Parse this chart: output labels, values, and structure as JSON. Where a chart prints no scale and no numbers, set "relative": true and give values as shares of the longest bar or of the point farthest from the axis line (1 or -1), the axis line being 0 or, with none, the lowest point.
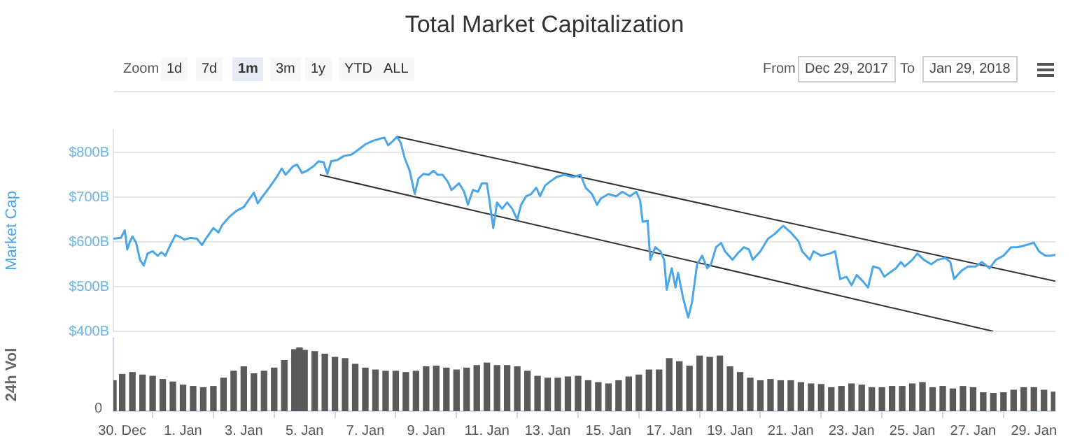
{
  "chart_data": [
    {
      "type": "line",
      "title": "Total Market Capitalization",
      "ylabel": "Market Cap",
      "annotations": [
        "Zoom",
        "1d",
        "7d",
        "1m",
        "3m",
        "1y",
        "YTD",
        "ALL",
        "From",
        "Dec 29, 2017",
        "To",
        "Jan 29, 2018"
      ],
      "xlim": [
        "2017-12-29T17:00",
        "2018-01-29T17:00"
      ],
      "ylim": [
        400,
        850
      ],
      "yticks": [
        {
          "value": 400,
          "label": "$400B"
        },
        {
          "value": 500,
          "label": "$500B"
        },
        {
          "value": 600,
          "label": "$600B"
        },
        {
          "value": 700,
          "label": "$700B"
        },
        {
          "value": 800,
          "label": "$800B"
        }
      ],
      "tick_labels": "y",
      "grid": "y",
      "legend": false,
      "marker": "none",
      "line_style": "solid",
      "series": [
        {
          "color": "#4aa6e8",
          "x": [
            "2017-12-29T17:00",
            "2017-12-29T23:00",
            "2017-12-30T02:00",
            "2017-12-30T04:00",
            "2017-12-30T06:00",
            "2017-12-30T08:00",
            "2017-12-30T11:00",
            "2017-12-30T14:00",
            "2017-12-30T17:00",
            "2017-12-30T20:00",
            "2017-12-31T00:00",
            "2017-12-31T04:00",
            "2017-12-31T07:00",
            "2017-12-31T10:00",
            "2017-12-31T14:00",
            "2017-12-31T18:00",
            "2017-12-31T21:00",
            "2018-01-01T01:00",
            "2018-01-01T06:00",
            "2018-01-01T11:00",
            "2018-01-01T15:00",
            "2018-01-01T18:00",
            "2018-01-02T00:00",
            "2018-01-02T04:00",
            "2018-01-02T07:00",
            "2018-01-02T13:00",
            "2018-01-02T18:00",
            "2018-01-03T00:00",
            "2018-01-03T06:00",
            "2018-01-03T08:00",
            "2018-01-03T11:00",
            "2018-01-03T15:00",
            "2018-01-03T20:00",
            "2018-01-04T02:00",
            "2018-01-04T06:00",
            "2018-01-04T09:00",
            "2018-01-04T15:00",
            "2018-01-04T18:00",
            "2018-01-04T22:00",
            "2018-01-05T02:00",
            "2018-01-05T07:00",
            "2018-01-05T11:00",
            "2018-01-05T15:00",
            "2018-01-05T18:00",
            "2018-01-05T21:00",
            "2018-01-06T02:00",
            "2018-01-06T07:00",
            "2018-01-06T13:00",
            "2018-01-06T18:00",
            "2018-01-07T00:00",
            "2018-01-07T06:00",
            "2018-01-07T11:00",
            "2018-01-07T15:00",
            "2018-01-07T18:00",
            "2018-01-07T22:00",
            "2018-01-08T01:00",
            "2018-01-08T04:00",
            "2018-01-08T07:00",
            "2018-01-08T11:00",
            "2018-01-08T15:00",
            "2018-01-08T18:00",
            "2018-01-08T22:00",
            "2018-01-09T02:00",
            "2018-01-09T06:00",
            "2018-01-09T09:00",
            "2018-01-09T13:00",
            "2018-01-09T17:00",
            "2018-01-09T20:00",
            "2018-01-10T02:00",
            "2018-01-10T06:00",
            "2018-01-10T09:00",
            "2018-01-10T13:00",
            "2018-01-10T17:00",
            "2018-01-10T20:00",
            "2018-01-11T00:00",
            "2018-01-11T02:00",
            "2018-01-11T05:00",
            "2018-01-11T08:00",
            "2018-01-11T12:00",
            "2018-01-11T16:00",
            "2018-01-11T20:00",
            "2018-01-12T00:00",
            "2018-01-12T03:00",
            "2018-01-12T07:00",
            "2018-01-12T11:00",
            "2018-01-12T15:00",
            "2018-01-12T18:00",
            "2018-01-12T22:00",
            "2018-01-13T02:00",
            "2018-01-13T07:00",
            "2018-01-13T13:00",
            "2018-01-13T20:00",
            "2018-01-14T02:00",
            "2018-01-14T06:00",
            "2018-01-14T11:00",
            "2018-01-14T15:00",
            "2018-01-14T18:00",
            "2018-01-15T00:00",
            "2018-01-15T06:00",
            "2018-01-15T11:00",
            "2018-01-15T17:00",
            "2018-01-15T22:00",
            "2018-01-16T01:00",
            "2018-01-16T03:00",
            "2018-01-16T07:00",
            "2018-01-16T09:00",
            "2018-01-16T13:00",
            "2018-01-16T17:00",
            "2018-01-16T20:00",
            "2018-01-16T22:00",
            "2018-01-17T02:00",
            "2018-01-17T05:00",
            "2018-01-17T07:00",
            "2018-01-17T11:00",
            "2018-01-17T15:00",
            "2018-01-17T18:00",
            "2018-01-17T22:00",
            "2018-01-18T02:00",
            "2018-01-18T06:00",
            "2018-01-18T09:00",
            "2018-01-18T13:00",
            "2018-01-18T17:00",
            "2018-01-18T20:00",
            "2018-01-19T02:00",
            "2018-01-19T06:00",
            "2018-01-19T11:00",
            "2018-01-19T15:00",
            "2018-01-19T18:00",
            "2018-01-20T00:00",
            "2018-01-20T06:00",
            "2018-01-20T11:00",
            "2018-01-20T18:00",
            "2018-01-21T00:00",
            "2018-01-21T06:00",
            "2018-01-21T09:00",
            "2018-01-21T15:00",
            "2018-01-21T18:00",
            "2018-01-22T00:00",
            "2018-01-22T07:00",
            "2018-01-22T11:00",
            "2018-01-22T15:00",
            "2018-01-22T20:00",
            "2018-01-23T00:00",
            "2018-01-23T04:00",
            "2018-01-23T09:00",
            "2018-01-23T13:00",
            "2018-01-23T17:00",
            "2018-01-23T22:00",
            "2018-01-24T02:00",
            "2018-01-24T06:00",
            "2018-01-24T11:00",
            "2018-01-24T15:00",
            "2018-01-24T18:00",
            "2018-01-25T00:00",
            "2018-01-25T04:00",
            "2018-01-25T09:00",
            "2018-01-25T15:00",
            "2018-01-25T20:00",
            "2018-01-26T02:00",
            "2018-01-26T06:00",
            "2018-01-26T09:00",
            "2018-01-26T15:00",
            "2018-01-26T20:00",
            "2018-01-27T02:00",
            "2018-01-27T07:00",
            "2018-01-27T13:00",
            "2018-01-27T18:00",
            "2018-01-28T00:00",
            "2018-01-28T06:00",
            "2018-01-28T11:00",
            "2018-01-28T18:00",
            "2018-01-29T00:00",
            "2018-01-29T04:00",
            "2018-01-29T09:00",
            "2018-01-29T13:00",
            "2018-01-29T17:00"
          ],
          "values": [
            607,
            609,
            626,
            583,
            600,
            612,
            598,
            560,
            547,
            574,
            579,
            569,
            577,
            569,
            593,
            615,
            612,
            605,
            609,
            607,
            593,
            607,
            631,
            621,
            638,
            657,
            669,
            678,
            702,
            710,
            686,
            702,
            721,
            745,
            764,
            750,
            769,
            773,
            754,
            759,
            769,
            780,
            778,
            752,
            780,
            783,
            792,
            795,
            805,
            818,
            826,
            830,
            833,
            816,
            826,
            835,
            821,
            788,
            759,
            707,
            742,
            752,
            750,
            759,
            750,
            750,
            735,
            716,
            731,
            712,
            683,
            716,
            712,
            731,
            731,
            693,
            631,
            688,
            674,
            688,
            674,
            650,
            683,
            702,
            707,
            721,
            702,
            726,
            735,
            745,
            750,
            745,
            750,
            721,
            707,
            683,
            697,
            707,
            702,
            712,
            702,
            712,
            693,
            645,
            647,
            560,
            588,
            579,
            560,
            493,
            541,
            498,
            531,
            474,
            431,
            465,
            550,
            569,
            541,
            550,
            588,
            598,
            579,
            560,
            574,
            588,
            583,
            560,
            579,
            607,
            617,
            636,
            621,
            602,
            579,
            560,
            579,
            569,
            574,
            579,
            517,
            522,
            503,
            526,
            512,
            498,
            545,
            541,
            522,
            531,
            541,
            555,
            545,
            560,
            574,
            560,
            550,
            560,
            564,
            555,
            517,
            536,
            545,
            545,
            555,
            541,
            560,
            569,
            588,
            588,
            593,
            598,
            579,
            569,
            569,
            571
          ]
        },
        {
          "color": "#333333",
          "x": [
            "2018-01-08T01:00",
            "2018-01-29T17:00"
          ],
          "values": [
            835,
            512
          ]
        },
        {
          "color": "#333333",
          "x": [
            "2018-01-05T12:00",
            "2018-01-27T16:00"
          ],
          "values": [
            750,
            400
          ]
        }
      ]
    },
    {
      "type": "bar",
      "ylabel": "24h Vol",
      "relative": true,
      "color": "#5a5a5a",
      "annotations": [
        "0"
      ],
      "xlim": [
        "2017-12-29T17:00",
        "2018-01-29T17:00"
      ],
      "xticks": [
        {
          "value": "2017-12-30",
          "label": "30. Dec"
        },
        {
          "value": "2018-01-01",
          "label": "1. Jan"
        },
        {
          "value": "2018-01-03",
          "label": "3. Jan"
        },
        {
          "value": "2018-01-05",
          "label": "5. Jan"
        },
        {
          "value": "2018-01-07",
          "label": "7. Jan"
        },
        {
          "value": "2018-01-09",
          "label": "9. Jan"
        },
        {
          "value": "2018-01-11",
          "label": "11. Jan"
        },
        {
          "value": "2018-01-13",
          "label": "13. Jan"
        },
        {
          "value": "2018-01-15",
          "label": "15. Jan"
        },
        {
          "value": "2018-01-17",
          "label": "17. Jan"
        },
        {
          "value": "2018-01-19",
          "label": "19. Jan"
        },
        {
          "value": "2018-01-21",
          "label": "21. Jan"
        },
        {
          "value": "2018-01-23",
          "label": "23. Jan"
        },
        {
          "value": "2018-01-25",
          "label": "25. Jan"
        },
        {
          "value": "2018-01-27",
          "label": "27. Jan"
        },
        {
          "value": "2018-01-29",
          "label": "29. Jan"
        }
      ],
      "grid": false,
      "legend": false,
      "x": [
        "2017-12-29T17:00",
        "2017-12-30T00:00",
        "2017-12-30T08:00",
        "2017-12-30T16:00",
        "2017-12-31T00:00",
        "2017-12-31T08:00",
        "2017-12-31T16:00",
        "2018-01-01T00:00",
        "2018-01-01T08:00",
        "2018-01-01T16:00",
        "2018-01-02T00:00",
        "2018-01-02T08:00",
        "2018-01-02T16:00",
        "2018-01-03T00:00",
        "2018-01-03T08:00",
        "2018-01-03T16:00",
        "2018-01-04T00:00",
        "2018-01-04T08:00",
        "2018-01-04T16:00",
        "2018-01-04T20:00",
        "2018-01-05T00:00",
        "2018-01-05T08:00",
        "2018-01-05T16:00",
        "2018-01-06T00:00",
        "2018-01-06T08:00",
        "2018-01-06T16:00",
        "2018-01-07T00:00",
        "2018-01-07T08:00",
        "2018-01-07T16:00",
        "2018-01-08T00:00",
        "2018-01-08T08:00",
        "2018-01-08T16:00",
        "2018-01-09T00:00",
        "2018-01-09T08:00",
        "2018-01-09T16:00",
        "2018-01-10T00:00",
        "2018-01-10T08:00",
        "2018-01-10T16:00",
        "2018-01-11T00:00",
        "2018-01-11T08:00",
        "2018-01-11T16:00",
        "2018-01-12T00:00",
        "2018-01-12T08:00",
        "2018-01-12T16:00",
        "2018-01-13T00:00",
        "2018-01-13T08:00",
        "2018-01-13T16:00",
        "2018-01-14T00:00",
        "2018-01-14T08:00",
        "2018-01-14T16:00",
        "2018-01-15T00:00",
        "2018-01-15T08:00",
        "2018-01-15T16:00",
        "2018-01-16T00:00",
        "2018-01-16T08:00",
        "2018-01-16T16:00",
        "2018-01-17T00:00",
        "2018-01-17T08:00",
        "2018-01-17T16:00",
        "2018-01-18T00:00",
        "2018-01-18T08:00",
        "2018-01-18T16:00",
        "2018-01-19T00:00",
        "2018-01-19T08:00",
        "2018-01-19T16:00",
        "2018-01-20T00:00",
        "2018-01-20T08:00",
        "2018-01-20T16:00",
        "2018-01-21T00:00",
        "2018-01-21T08:00",
        "2018-01-21T16:00",
        "2018-01-22T00:00",
        "2018-01-22T08:00",
        "2018-01-22T16:00",
        "2018-01-23T00:00",
        "2018-01-23T08:00",
        "2018-01-23T16:00",
        "2018-01-24T00:00",
        "2018-01-24T08:00",
        "2018-01-24T16:00",
        "2018-01-25T00:00",
        "2018-01-25T08:00",
        "2018-01-25T16:00",
        "2018-01-26T00:00",
        "2018-01-26T08:00",
        "2018-01-26T16:00",
        "2018-01-27T00:00",
        "2018-01-27T08:00",
        "2018-01-27T16:00",
        "2018-01-28T00:00",
        "2018-01-28T08:00",
        "2018-01-28T16:00",
        "2018-01-29T00:00",
        "2018-01-29T08:00",
        "2018-01-29T16:00"
      ],
      "values": [
        0.48,
        0.58,
        0.61,
        0.57,
        0.55,
        0.5,
        0.46,
        0.41,
        0.39,
        0.37,
        0.39,
        0.52,
        0.63,
        0.7,
        0.59,
        0.63,
        0.68,
        0.8,
        0.97,
        1,
        0.96,
        0.94,
        0.9,
        0.85,
        0.83,
        0.74,
        0.68,
        0.65,
        0.63,
        0.63,
        0.61,
        0.63,
        0.7,
        0.71,
        0.68,
        0.65,
        0.68,
        0.72,
        0.76,
        0.72,
        0.72,
        0.7,
        0.63,
        0.55,
        0.52,
        0.52,
        0.54,
        0.55,
        0.48,
        0.45,
        0.43,
        0.48,
        0.54,
        0.57,
        0.65,
        0.65,
        0.83,
        0.78,
        0.71,
        0.87,
        0.85,
        0.87,
        0.7,
        0.61,
        0.52,
        0.48,
        0.5,
        0.48,
        0.48,
        0.45,
        0.43,
        0.42,
        0.37,
        0.39,
        0.43,
        0.41,
        0.37,
        0.37,
        0.39,
        0.39,
        0.43,
        0.45,
        0.37,
        0.39,
        0.35,
        0.39,
        0.37,
        0.29,
        0.28,
        0.29,
        0.33,
        0.37,
        0.37,
        0.33,
        0.3
      ]
    }
  ]
}
